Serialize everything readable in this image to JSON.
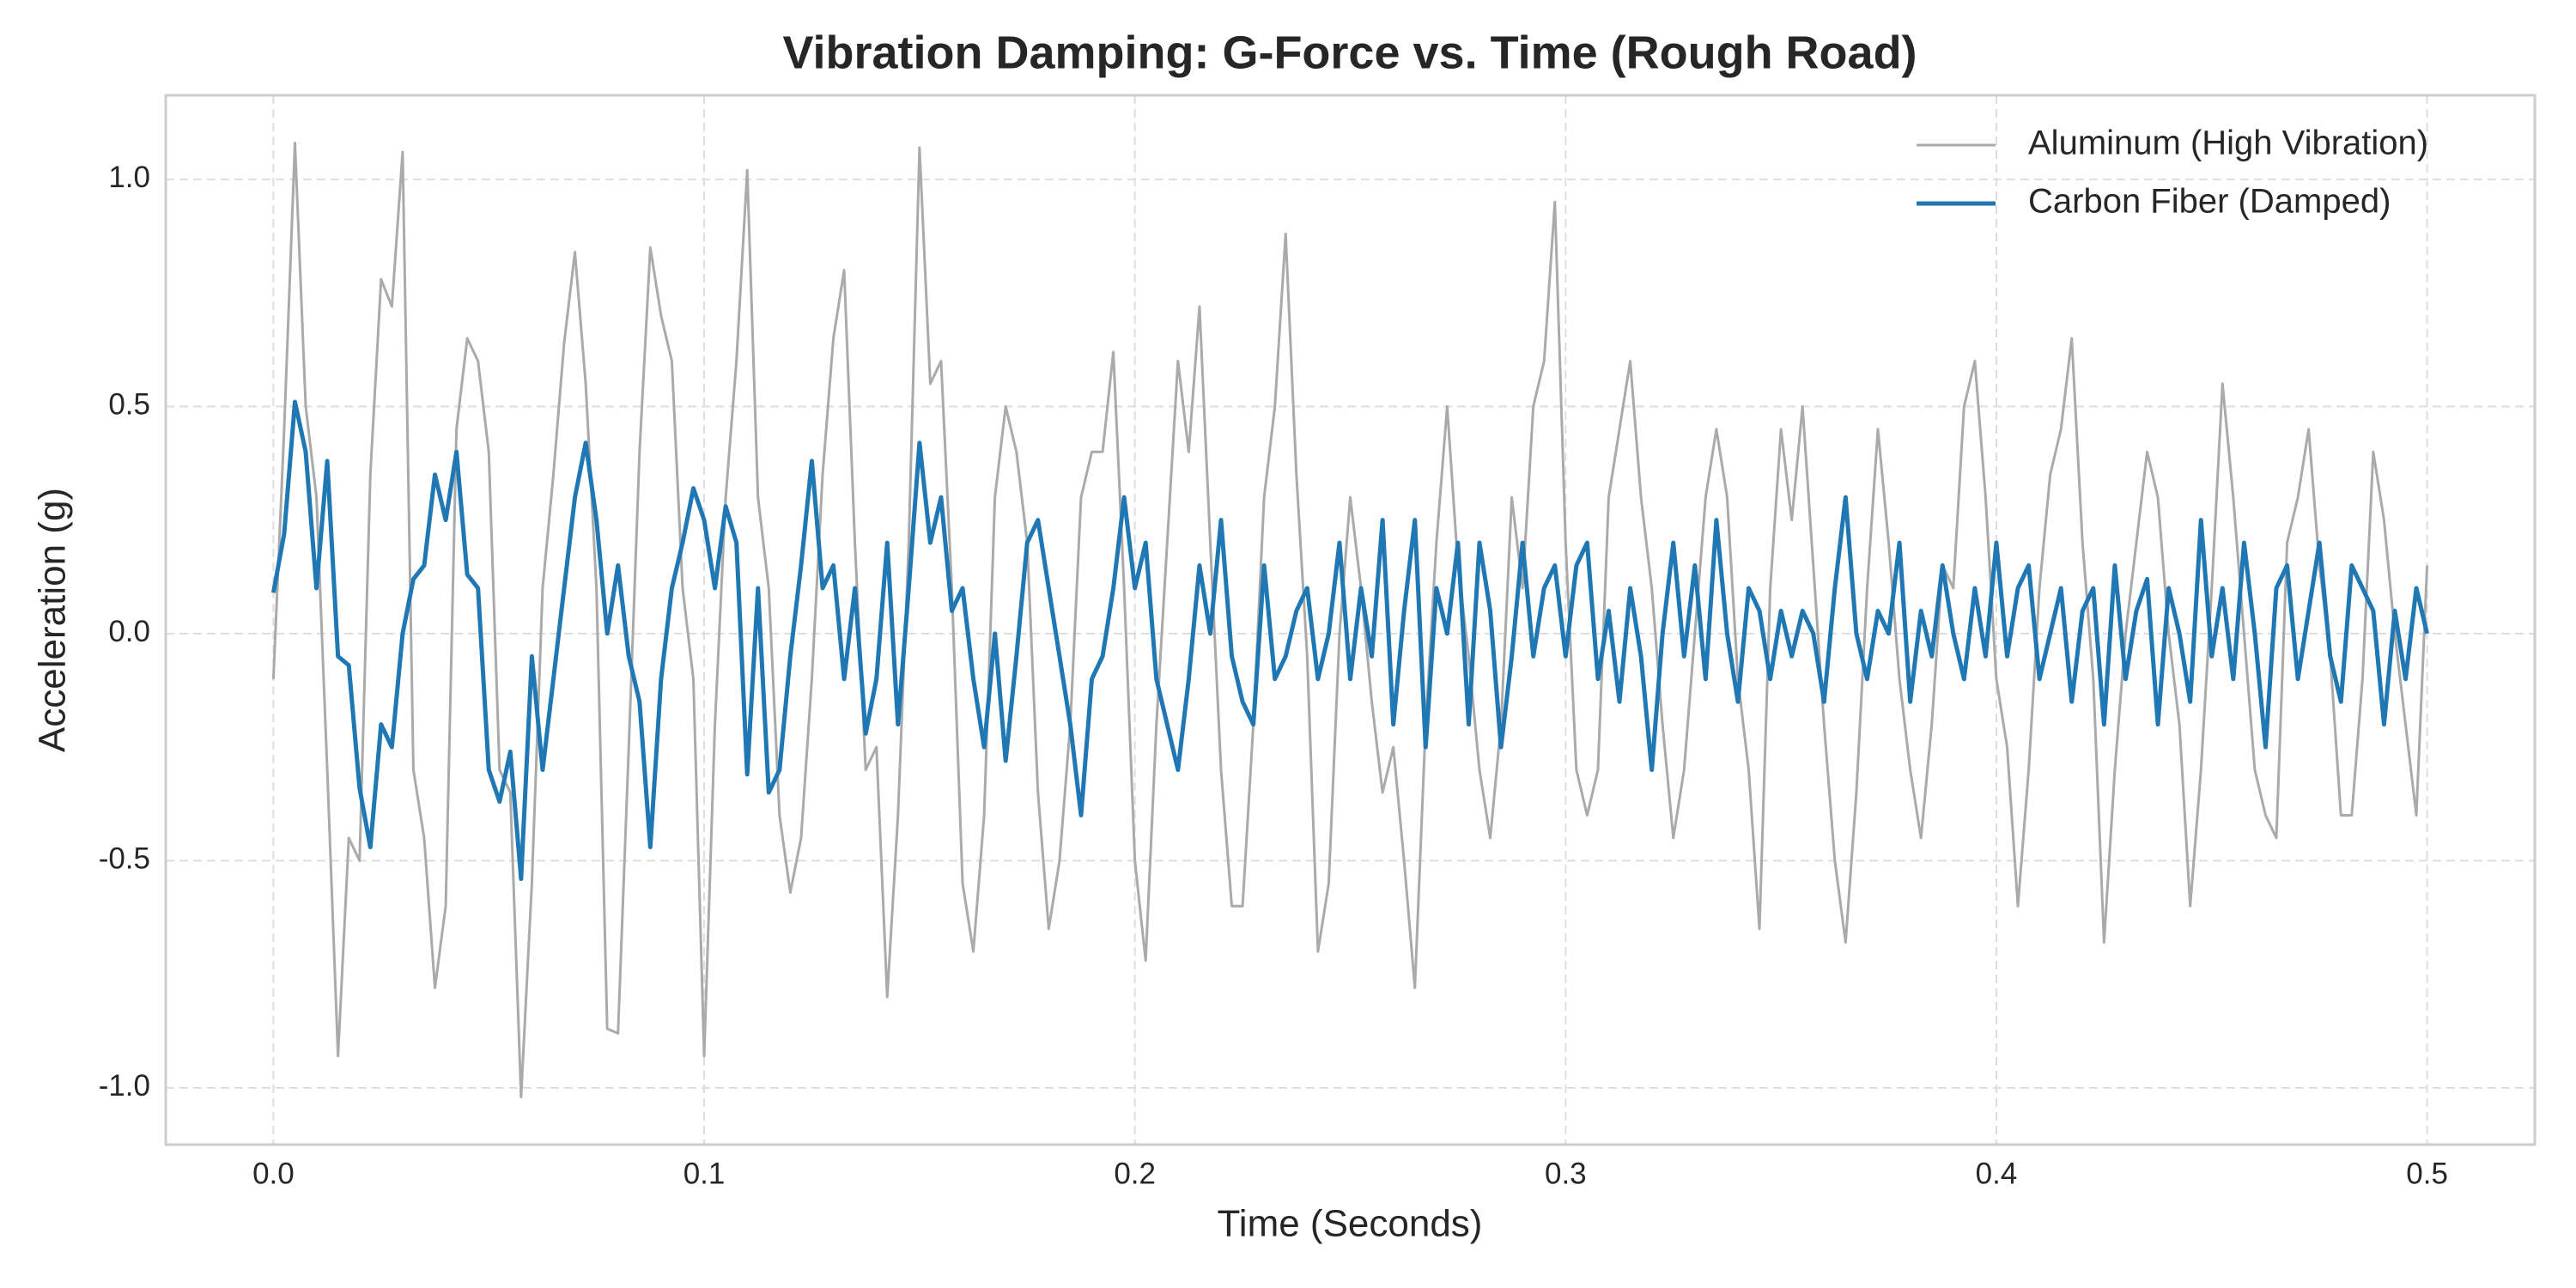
{
  "chart_data": {
    "type": "line",
    "title": "Vibration Damping: G-Force vs. Time (Rough Road)",
    "x_label": "Time (Seconds)",
    "y_label": "Acceleration (g)",
    "xlim": [
      -0.025,
      0.525
    ],
    "ylim": [
      -1.125,
      1.185
    ],
    "xticks": [
      {
        "value": 0,
        "label": "0.0"
      },
      0.1,
      0.2,
      0.3,
      0.4,
      0.5
    ],
    "yticks": [
      {
        "value": -1,
        "label": "-1.0"
      },
      -0.5,
      {
        "value": 0,
        "label": "0.0"
      },
      0.5,
      {
        "value": 1,
        "label": "1.0"
      }
    ],
    "grid": true,
    "legend": "upper right",
    "x": [
      0,
      0.0025,
      0.005,
      0.0075,
      0.01,
      0.0125,
      0.015,
      0.0175,
      0.02,
      0.0225,
      0.025,
      0.0275,
      0.03,
      0.0325,
      0.035,
      0.0375,
      0.04,
      0.0425,
      0.045,
      0.0475,
      0.05,
      0.0525,
      0.055,
      0.0575,
      0.06,
      0.0625,
      0.065,
      0.0675,
      0.07,
      0.0725,
      0.075,
      0.0775,
      0.08,
      0.0825,
      0.085,
      0.0875,
      0.09,
      0.0925,
      0.095,
      0.0975,
      0.1,
      0.1025,
      0.105,
      0.1075,
      0.11,
      0.1125,
      0.115,
      0.1175,
      0.12,
      0.1225,
      0.125,
      0.1275,
      0.13,
      0.1325,
      0.135,
      0.1375,
      0.14,
      0.1425,
      0.145,
      0.1475,
      0.15,
      0.1525,
      0.155,
      0.1575,
      0.16,
      0.1625,
      0.165,
      0.1675,
      0.17,
      0.1725,
      0.175,
      0.1775,
      0.18,
      0.1825,
      0.185,
      0.1875,
      0.19,
      0.1925,
      0.195,
      0.1975,
      0.2,
      0.2025,
      0.205,
      0.2075,
      0.21,
      0.2125,
      0.215,
      0.2175,
      0.22,
      0.2225,
      0.225,
      0.2275,
      0.23,
      0.2325,
      0.235,
      0.2375,
      0.24,
      0.2425,
      0.245,
      0.2475,
      0.25,
      0.2525,
      0.255,
      0.2575,
      0.26,
      0.2625,
      0.265,
      0.2675,
      0.27,
      0.2725,
      0.275,
      0.2775,
      0.28,
      0.2825,
      0.285,
      0.2875,
      0.29,
      0.2925,
      0.295,
      0.2975,
      0.3,
      0.3025,
      0.305,
      0.3075,
      0.31,
      0.3125,
      0.315,
      0.3175,
      0.32,
      0.3225,
      0.325,
      0.3275,
      0.33,
      0.3325,
      0.335,
      0.3375,
      0.34,
      0.3425,
      0.345,
      0.3475,
      0.35,
      0.3525,
      0.355,
      0.3575,
      0.36,
      0.3625,
      0.365,
      0.3675,
      0.37,
      0.3725,
      0.375,
      0.3775,
      0.38,
      0.3825,
      0.385,
      0.3875,
      0.39,
      0.3925,
      0.395,
      0.3975,
      0.4,
      0.4025,
      0.405,
      0.4075,
      0.41,
      0.4125,
      0.415,
      0.4175,
      0.42,
      0.4225,
      0.425,
      0.4275,
      0.43,
      0.4325,
      0.435,
      0.4375,
      0.44,
      0.4425,
      0.445,
      0.4475,
      0.45,
      0.4525,
      0.455,
      0.4575,
      0.46,
      0.4625,
      0.465,
      0.4675,
      0.47,
      0.4725,
      0.475,
      0.4775,
      0.48,
      0.4825,
      0.485,
      0.4875,
      0.49,
      0.4925,
      0.495,
      0.4975,
      0.5
    ],
    "series": [
      {
        "name": "Aluminum (High Vibration)",
        "color": "#aaaaaa",
        "width": 3,
        "values": [
          -0.1,
          0.45,
          1.08,
          0.5,
          0.3,
          -0.3,
          -0.93,
          -0.45,
          -0.5,
          0.35,
          0.78,
          0.72,
          1.06,
          -0.3,
          -0.45,
          -0.78,
          -0.6,
          0.45,
          0.65,
          0.6,
          0.4,
          -0.3,
          -0.35,
          -1.02,
          -0.55,
          0.1,
          0.35,
          0.64,
          0.84,
          0.55,
          0.1,
          -0.87,
          -0.88,
          -0.25,
          0.4,
          0.85,
          0.7,
          0.6,
          0.1,
          -0.1,
          -0.93,
          -0.2,
          0.3,
          0.6,
          1.02,
          0.3,
          0.1,
          -0.4,
          -0.57,
          -0.45,
          -0.1,
          0.35,
          0.65,
          0.8,
          0.2,
          -0.3,
          -0.25,
          -0.8,
          -0.4,
          0.2,
          1.07,
          0.55,
          0.6,
          0.1,
          -0.55,
          -0.7,
          -0.4,
          0.3,
          0.5,
          0.4,
          0.2,
          -0.35,
          -0.65,
          -0.5,
          -0.2,
          0.3,
          0.4,
          0.4,
          0.62,
          0.1,
          -0.5,
          -0.72,
          -0.2,
          0.2,
          0.6,
          0.4,
          0.72,
          0.2,
          -0.3,
          -0.6,
          -0.6,
          -0.2,
          0.3,
          0.5,
          0.88,
          0.35,
          -0.05,
          -0.7,
          -0.55,
          0.0,
          0.3,
          0.1,
          -0.15,
          -0.35,
          -0.25,
          -0.5,
          -0.78,
          -0.2,
          0.2,
          0.5,
          0.15,
          -0.05,
          -0.3,
          -0.45,
          -0.2,
          0.3,
          0.1,
          0.5,
          0.6,
          0.95,
          0.2,
          -0.3,
          -0.4,
          -0.3,
          0.3,
          0.45,
          0.6,
          0.3,
          0.1,
          -0.2,
          -0.45,
          -0.3,
          0.0,
          0.3,
          0.45,
          0.3,
          -0.1,
          -0.3,
          -0.65,
          0.1,
          0.45,
          0.25,
          0.5,
          0.15,
          -0.2,
          -0.5,
          -0.68,
          -0.35,
          0.1,
          0.45,
          0.2,
          -0.1,
          -0.3,
          -0.45,
          -0.2,
          0.15,
          0.1,
          0.5,
          0.6,
          0.3,
          -0.1,
          -0.25,
          -0.6,
          -0.3,
          0.1,
          0.35,
          0.45,
          0.65,
          0.2,
          -0.1,
          -0.68,
          -0.3,
          0.0,
          0.2,
          0.4,
          0.3,
          0.0,
          -0.2,
          -0.6,
          -0.3,
          0.1,
          0.55,
          0.3,
          0.0,
          -0.3,
          -0.4,
          -0.45,
          0.2,
          0.3,
          0.45,
          0.15,
          -0.05,
          -0.4,
          -0.4,
          -0.1,
          0.4,
          0.25,
          0.0,
          -0.2,
          -0.4,
          0.15
        ]
      },
      {
        "name": "Carbon Fiber (Damped)",
        "color": "#1f77b4",
        "width": 5,
        "values": [
          0.09,
          0.22,
          0.51,
          0.4,
          0.1,
          0.38,
          -0.05,
          -0.07,
          -0.34,
          -0.47,
          -0.2,
          -0.25,
          0.0,
          0.12,
          0.15,
          0.35,
          0.25,
          0.4,
          0.13,
          0.1,
          -0.3,
          -0.37,
          -0.26,
          -0.54,
          -0.05,
          -0.3,
          -0.1,
          0.1,
          0.3,
          0.42,
          0.25,
          0.0,
          0.15,
          -0.05,
          -0.15,
          -0.47,
          -0.1,
          0.1,
          0.2,
          0.32,
          0.25,
          0.1,
          0.28,
          0.2,
          -0.31,
          0.1,
          -0.35,
          -0.3,
          -0.05,
          0.15,
          0.38,
          0.1,
          0.15,
          -0.1,
          0.1,
          -0.22,
          -0.1,
          0.2,
          -0.2,
          0.1,
          0.42,
          0.2,
          0.3,
          0.05,
          0.1,
          -0.1,
          -0.25,
          0.0,
          -0.28,
          -0.05,
          0.2,
          0.25,
          0.1,
          -0.05,
          -0.2,
          -0.4,
          -0.1,
          -0.05,
          0.1,
          0.3,
          0.1,
          0.2,
          -0.1,
          -0.2,
          -0.3,
          -0.1,
          0.15,
          0.0,
          0.25,
          -0.05,
          -0.15,
          -0.2,
          0.15,
          -0.1,
          -0.05,
          0.05,
          0.1,
          -0.1,
          0.0,
          0.2,
          -0.1,
          0.1,
          -0.05,
          0.25,
          -0.2,
          0.05,
          0.25,
          -0.25,
          0.1,
          0.0,
          0.2,
          -0.2,
          0.2,
          0.05,
          -0.25,
          -0.05,
          0.2,
          -0.05,
          0.1,
          0.15,
          -0.05,
          0.15,
          0.2,
          -0.1,
          0.05,
          -0.15,
          0.1,
          -0.05,
          -0.3,
          0.0,
          0.2,
          -0.05,
          0.15,
          -0.1,
          0.25,
          0.0,
          -0.15,
          0.1,
          0.05,
          -0.1,
          0.05,
          -0.05,
          0.05,
          0.0,
          -0.15,
          0.1,
          0.3,
          0.0,
          -0.1,
          0.05,
          0.0,
          0.2,
          -0.15,
          0.05,
          -0.05,
          0.15,
          0.0,
          -0.1,
          0.1,
          -0.05,
          0.2,
          -0.05,
          0.1,
          0.15,
          -0.1,
          0.0,
          0.1,
          -0.15,
          0.05,
          0.1,
          -0.2,
          0.15,
          -0.1,
          0.05,
          0.12,
          -0.2,
          0.1,
          0.0,
          -0.15,
          0.25,
          -0.05,
          0.1,
          -0.1,
          0.2,
          0.0,
          -0.25,
          0.1,
          0.15,
          -0.1,
          0.05,
          0.2,
          -0.05,
          -0.15,
          0.15,
          0.1,
          0.05,
          -0.2,
          0.05,
          -0.1,
          0.1,
          0.0
        ]
      }
    ]
  }
}
